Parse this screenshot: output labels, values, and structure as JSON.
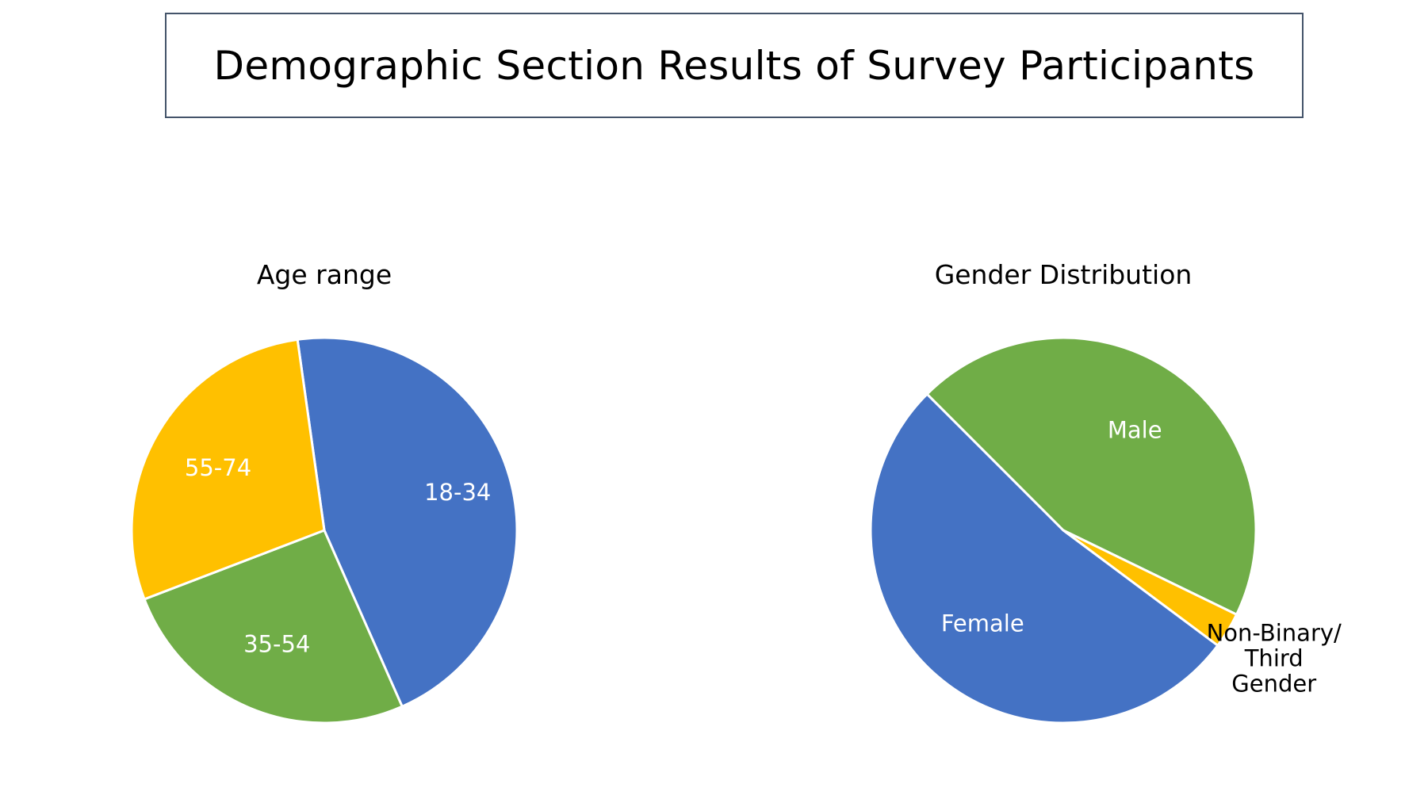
{
  "page": {
    "title": "Demographic Section Results of Survey Participants"
  },
  "chart_data": [
    {
      "type": "pie",
      "title": "Age range",
      "categories": [
        "18-34",
        "35-54",
        "55-74"
      ],
      "values": [
        45.6,
        25.8,
        28.6
      ],
      "colors": [
        "#4472c4",
        "#70ad47",
        "#ffc000"
      ],
      "label_colors": [
        "#ffffff",
        "#ffffff",
        "#ffffff"
      ]
    },
    {
      "type": "pie",
      "title": "Gender Distribution",
      "categories": [
        "Male",
        "Non-Binary/ Third Gender",
        "Female"
      ],
      "label_lines": [
        [
          "Male"
        ],
        [
          "Non-Binary/",
          "Third",
          "Gender"
        ],
        [
          "Female"
        ]
      ],
      "values": [
        44.7,
        3.0,
        52.3
      ],
      "colors": [
        "#70ad47",
        "#ffc000",
        "#4472c4"
      ],
      "label_colors": [
        "#ffffff",
        "#000000",
        "#ffffff"
      ]
    }
  ]
}
